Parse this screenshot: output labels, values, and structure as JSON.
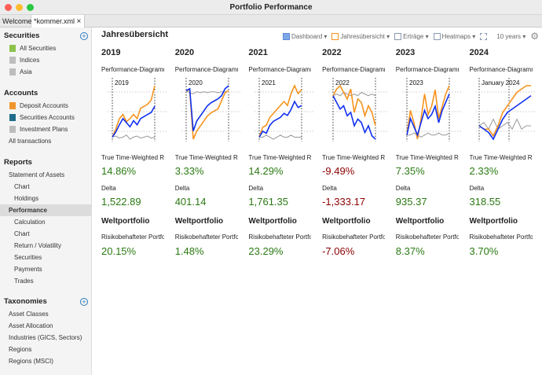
{
  "window": {
    "title": "Portfolio Performance"
  },
  "tabs": [
    {
      "label": "Welcome"
    },
    {
      "label": "*kommer.xml",
      "close": "×"
    }
  ],
  "sidebar": {
    "securities": {
      "title": "Securities",
      "items": [
        {
          "label": "All Securities",
          "color": "#8bc34a"
        },
        {
          "label": "Indices",
          "color": "#bdbdbd"
        },
        {
          "label": "Asia",
          "color": "#bdbdbd"
        }
      ]
    },
    "accounts": {
      "title": "Accounts",
      "items": [
        {
          "label": "Deposit Accounts",
          "color": "#f0952e"
        },
        {
          "label": "Securities Accounts",
          "color": "#1f6b8a"
        },
        {
          "label": "Investment Plans",
          "color": "#bdbdbd"
        },
        {
          "label": "All transactions"
        }
      ]
    },
    "reports": {
      "title": "Reports",
      "items": [
        {
          "label": "Statement of Assets",
          "level": 1
        },
        {
          "label": "Chart",
          "level": 2
        },
        {
          "label": "Holdings",
          "level": 2
        },
        {
          "label": "Performance",
          "level": 1,
          "selected": true
        },
        {
          "label": "Calculation",
          "level": 2
        },
        {
          "label": "Chart",
          "level": 2
        },
        {
          "label": "Return / Volatility",
          "level": 2
        },
        {
          "label": "Securities",
          "level": 2
        },
        {
          "label": "Payments",
          "level": 2
        },
        {
          "label": "Trades",
          "level": 2
        }
      ]
    },
    "taxonomies": {
      "title": "Taxonomies",
      "items": [
        {
          "label": "Asset Classes"
        },
        {
          "label": "Asset Allocation"
        },
        {
          "label": "Industries (GICS, Sectors)"
        },
        {
          "label": "Regions"
        },
        {
          "label": "Regions (MSCI)"
        }
      ]
    }
  },
  "main": {
    "title": "Jahresübersicht",
    "toolbar": {
      "dashboard": "Dashboard ▾",
      "jahres": "Jahresübersicht ▾",
      "ertraege": "Erträge ▾",
      "heatmaps": "Heatmaps ▾",
      "period": "10 years ▾"
    },
    "labels": {
      "chart": "Performance-Diagramm",
      "ttwror": "True Time-Weighted Rate of Return",
      "delta": "Delta",
      "portfolio": "Weltportfolio",
      "risk": "Risikobehafteter Portfolioanteil"
    },
    "colors": {
      "positive": "#2a7a12",
      "negative": "#8b0000",
      "portfolio": "#1030f0",
      "benchmark": "#f7931e",
      "delta": "#999999"
    }
  },
  "chart_data": [
    {
      "type": "line",
      "year": "2019",
      "label": "2019",
      "ttwror": "14.86%",
      "delta": "1,522.89",
      "risk": "20.15%",
      "series": [
        {
          "values": [
            0,
            5,
            12,
            18,
            14,
            10,
            16,
            12,
            18,
            20,
            22,
            24,
            30
          ]
        },
        {
          "values": [
            0,
            8,
            18,
            22,
            15,
            18,
            22,
            18,
            28,
            30,
            32,
            36,
            50
          ]
        },
        {
          "values": [
            0,
            1,
            -1,
            0,
            2,
            -2,
            0,
            1,
            -1,
            0,
            1,
            -1,
            0
          ]
        }
      ]
    },
    {
      "type": "line",
      "year": "2020",
      "label": "2020",
      "ttwror": "3.33%",
      "delta": "401.14",
      "risk": "1.48%",
      "series": [
        {
          "values": [
            0,
            2,
            -40,
            -30,
            -25,
            -20,
            -15,
            -12,
            -10,
            -8,
            -5,
            2,
            5
          ]
        },
        {
          "values": [
            0,
            1,
            -48,
            -40,
            -35,
            -30,
            -25,
            -22,
            -20,
            -18,
            -10,
            -2,
            0
          ]
        },
        {
          "values": [
            0,
            -2,
            -3,
            -1,
            -2,
            -1,
            -2,
            -1,
            -1,
            -2,
            -1,
            -1,
            0
          ]
        }
      ]
    },
    {
      "type": "line",
      "year": "2021",
      "label": "2021",
      "ttwror": "14.29%",
      "delta": "1,761.35",
      "risk": "23.29%",
      "series": [
        {
          "values": [
            0,
            3,
            2,
            6,
            8,
            9,
            10,
            12,
            11,
            14,
            18,
            15,
            16
          ]
        },
        {
          "values": [
            0,
            5,
            6,
            10,
            12,
            14,
            16,
            18,
            16,
            22,
            26,
            22,
            24
          ]
        },
        {
          "values": [
            0,
            0,
            1,
            0,
            -1,
            0,
            1,
            0,
            0,
            1,
            0,
            0,
            0
          ]
        }
      ]
    },
    {
      "type": "line",
      "year": "2022",
      "label": "2022",
      "ttwror": "-9.49%",
      "delta": "-1,333.17",
      "risk": "-7.06%",
      "series": [
        {
          "values": [
            0,
            -4,
            -8,
            -6,
            -12,
            -10,
            -18,
            -14,
            -16,
            -22,
            -18,
            -24,
            -26
          ]
        },
        {
          "values": [
            0,
            4,
            6,
            2,
            -2,
            4,
            -10,
            -2,
            -4,
            -12,
            -6,
            -10,
            -18
          ]
        },
        {
          "values": [
            0,
            1,
            0,
            2,
            1,
            0,
            1,
            0,
            2,
            1,
            0,
            1,
            0
          ]
        }
      ]
    },
    {
      "type": "line",
      "year": "2023",
      "label": "2023",
      "ttwror": "7.35%",
      "delta": "935.37",
      "risk": "8.37%",
      "series": [
        {
          "values": [
            0,
            8,
            4,
            0,
            6,
            12,
            8,
            10,
            14,
            6,
            12,
            16,
            20
          ]
        },
        {
          "values": [
            0,
            12,
            6,
            -2,
            8,
            20,
            10,
            14,
            22,
            8,
            14,
            20,
            24
          ]
        },
        {
          "values": [
            0,
            0,
            1,
            0,
            -1,
            0,
            1,
            0,
            0,
            1,
            0,
            0,
            1
          ]
        }
      ]
    },
    {
      "type": "line",
      "year": "2024",
      "label": "January 2024",
      "ttwror": "2.33%",
      "delta": "318.55",
      "risk": "3.70%",
      "series": [
        {
          "values": [
            0,
            -1,
            -2,
            -4,
            -1,
            2,
            4,
            5,
            6,
            7,
            8,
            9
          ]
        },
        {
          "values": [
            0,
            -1,
            -1,
            -3,
            0,
            4,
            6,
            8,
            10,
            11,
            12,
            12
          ]
        },
        {
          "values": [
            0,
            1,
            -1,
            2,
            -1,
            0,
            1,
            -1,
            2,
            -1,
            0,
            0
          ]
        }
      ]
    }
  ]
}
